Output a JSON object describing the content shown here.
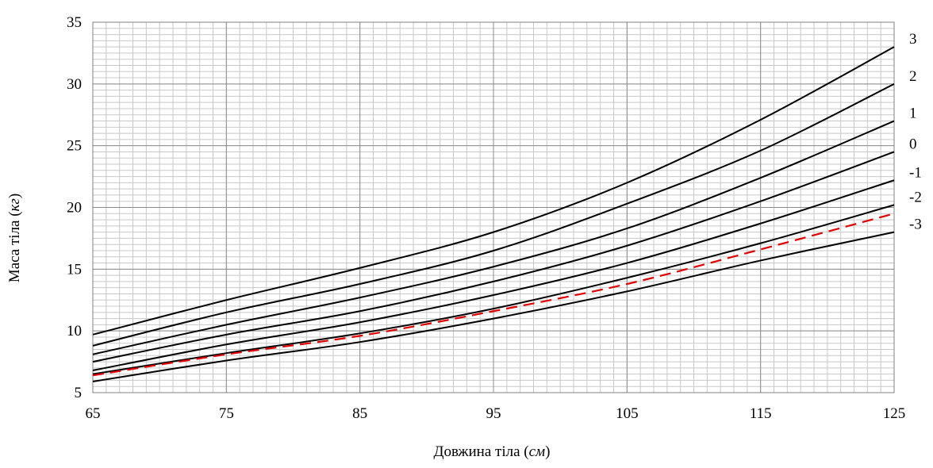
{
  "chart_data": {
    "type": "line",
    "xlabel": "Довжина тіла (см)",
    "xlabel_main": "Довжина тіла (",
    "xlabel_unit": "см",
    "xlabel_close": ")",
    "ylabel": "Маса тіла (кг)",
    "ylabel_main": "Маса тіла (",
    "ylabel_unit": "кг",
    "ylabel_close": ")",
    "xlim": [
      65,
      125
    ],
    "ylim": [
      5,
      35
    ],
    "x_ticks": [
      65,
      75,
      85,
      95,
      105,
      115,
      125
    ],
    "y_ticks": [
      5,
      10,
      15,
      20,
      25,
      30,
      35
    ],
    "grid": true,
    "minor_grid": true,
    "x": [
      65,
      75,
      85,
      95,
      105,
      115,
      125
    ],
    "series": [
      {
        "name": "3",
        "values": [
          9.7,
          12.5,
          15.1,
          18.0,
          22.0,
          27.1,
          33.0
        ],
        "color": "#000000",
        "dashed": false
      },
      {
        "name": "2",
        "values": [
          8.8,
          11.5,
          13.8,
          16.5,
          20.3,
          24.6,
          30.0
        ],
        "color": "#000000",
        "dashed": false
      },
      {
        "name": "1",
        "values": [
          8.1,
          10.5,
          12.7,
          15.2,
          18.3,
          22.4,
          27.0
        ],
        "color": "#000000",
        "dashed": false
      },
      {
        "name": "0",
        "values": [
          7.5,
          9.7,
          11.6,
          14.0,
          16.9,
          20.5,
          24.5
        ],
        "color": "#000000",
        "dashed": false
      },
      {
        "name": "-1",
        "values": [
          6.8,
          8.9,
          10.7,
          12.9,
          15.5,
          18.7,
          22.2
        ],
        "color": "#000000",
        "dashed": false
      },
      {
        "name": "-2",
        "values": [
          6.5,
          8.2,
          9.8,
          11.8,
          14.3,
          17.1,
          20.2
        ],
        "color": "#000000",
        "dashed": false
      },
      {
        "name": "-3",
        "values": [
          5.9,
          7.6,
          9.1,
          11.0,
          13.2,
          15.7,
          18.0
        ],
        "color": "#000000",
        "dashed": false
      },
      {
        "name": "",
        "values": [
          6.4,
          8.1,
          9.6,
          11.6,
          13.8,
          16.6,
          19.5
        ],
        "color": "#e00000",
        "dashed": true
      }
    ]
  }
}
